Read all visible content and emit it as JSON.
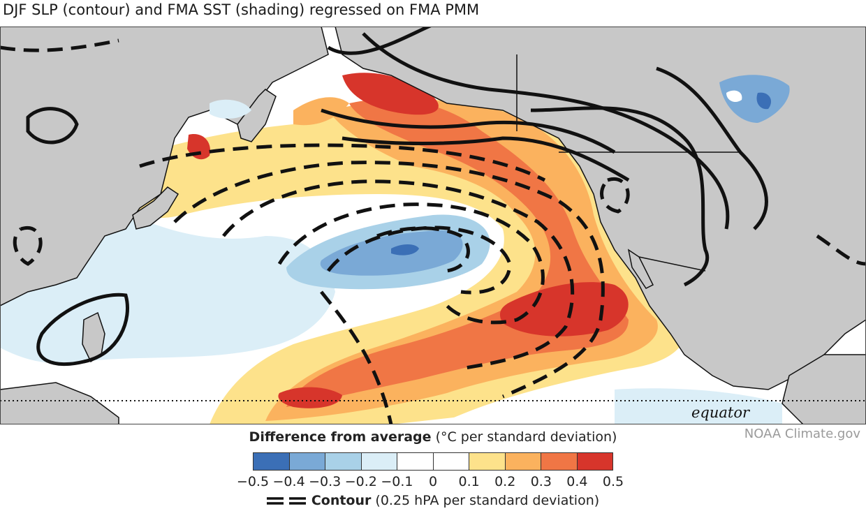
{
  "title": "DJF SLP (contour) and FMA SST (shading) regressed on FMA PMM",
  "credit": "NOAA Climate.gov",
  "map": {
    "equator_label": "equator",
    "land_color": "#c8c8c8",
    "ocean_color": "#ffffff",
    "contour_color": "#111111",
    "features": [
      "north-pacific",
      "east-asia",
      "north-america",
      "alaska",
      "philippines",
      "hawaii"
    ]
  },
  "legend": {
    "title_bold": "Difference from average",
    "title_units": " (°C per standard deviation)",
    "colors": [
      "#3b6fb6",
      "#7aa9d6",
      "#a9d1e8",
      "#dbeef7",
      "#ffffff",
      "#ffffff",
      "#fde28b",
      "#fbb25e",
      "#f07645",
      "#d7352b"
    ],
    "ticks": [
      "−0.5",
      "−0.4",
      "−0.3",
      "−0.2",
      "−0.1",
      "0",
      "0.1",
      "0.2",
      "0.3",
      "0.4",
      "0.5"
    ]
  },
  "contour_key": {
    "label_bold": "Contour",
    "label_units": " (0.25 hPA per standard deviation)"
  }
}
